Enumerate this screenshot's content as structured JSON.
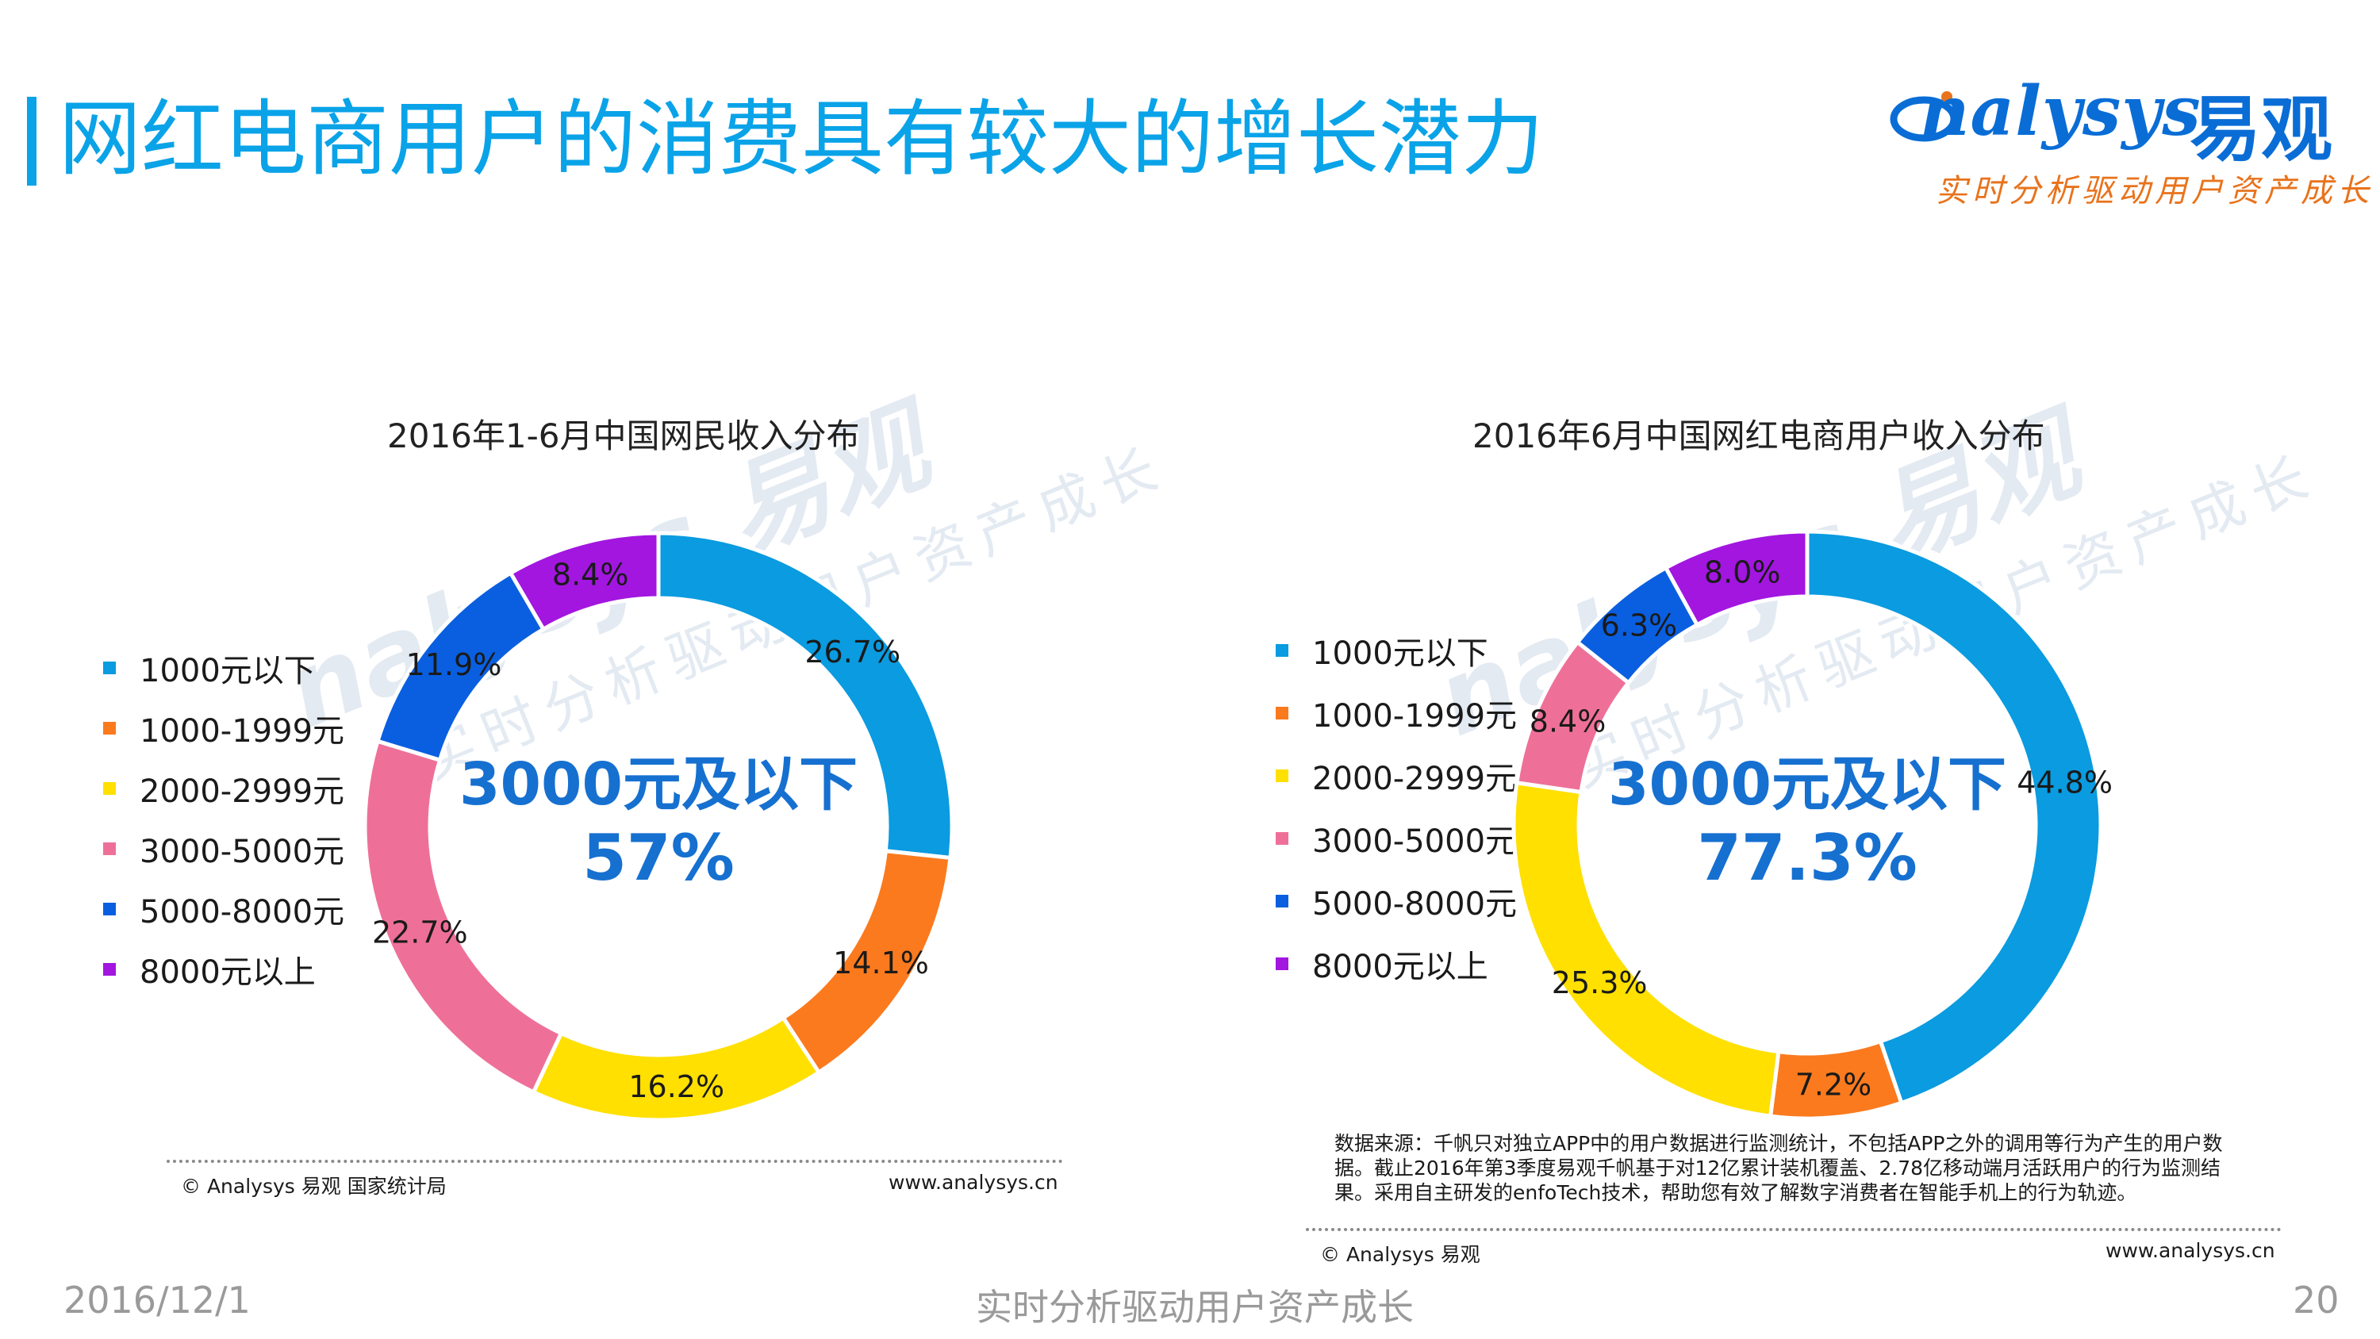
{
  "page": {
    "title": "网红电商用户的消费具有较大的增长潜力",
    "logo": {
      "word": "nalysys",
      "cn": "易观",
      "slogan": "实时分析驱动用户资产成长"
    },
    "watermark": {
      "word": "nalysys",
      "cn": "易观",
      "slogan": "实时分析驱动用户资产成长"
    },
    "footer": {
      "date": "2016/12/1",
      "slogan": "实时分析驱动用户资产成长",
      "page_number": "20"
    },
    "colors": {
      "accent": "#0aa3e8",
      "brand": "#0a6dd6",
      "center_text": "#1670d0"
    }
  },
  "chart_data": [
    {
      "type": "pie",
      "title": "2016年1-6月中国网民收入分布",
      "center_label": {
        "line1": "3000元及以下",
        "line2": "57%"
      },
      "categories": [
        "1000元以下",
        "1000-1999元",
        "2000-2999元",
        "3000-5000元",
        "5000-8000元",
        "8000元以上"
      ],
      "values": [
        26.7,
        14.1,
        16.2,
        22.7,
        11.9,
        8.4
      ],
      "labels": [
        "26.7%",
        "14.1%",
        "16.2%",
        "22.7%",
        "11.9%",
        "8.4%"
      ],
      "colors": [
        "#0a9be0",
        "#fb7a1e",
        "#ffe000",
        "#ee7099",
        "#0a5fe0",
        "#a216e0"
      ],
      "legend_position": "left",
      "source_left": "© Analysys 易观 国家统计局",
      "source_right": "www.analysys.cn"
    },
    {
      "type": "pie",
      "title": "2016年6月中国网红电商用户收入分布",
      "center_label": {
        "line1": "3000元及以下",
        "line2": "77.3%"
      },
      "categories": [
        "1000元以下",
        "1000-1999元",
        "2000-2999元",
        "3000-5000元",
        "5000-8000元",
        "8000元以上"
      ],
      "values": [
        44.8,
        7.2,
        25.3,
        8.4,
        6.3,
        8.0
      ],
      "labels": [
        "44.8%",
        "7.2%",
        "25.3%",
        "8.4%",
        "6.3%",
        "8.0%"
      ],
      "colors": [
        "#0a9be0",
        "#fb7a1e",
        "#ffe000",
        "#ee7099",
        "#0a5fe0",
        "#a216e0"
      ],
      "legend_position": "left",
      "note": "数据来源：千帆只对独立APP中的用户数据进行监测统计，不包括APP之外的调用等行为产生的用户数据。截止2016年第3季度易观千帆基于对12亿累计装机覆盖、2.78亿移动端月活跃用户的行为监测结果。采用自主研发的enfoTech技术，帮助您有效了解数字消费者在智能手机上的行为轨迹。",
      "source_left": "© Analysys 易观",
      "source_right": "www.analysys.cn"
    }
  ]
}
